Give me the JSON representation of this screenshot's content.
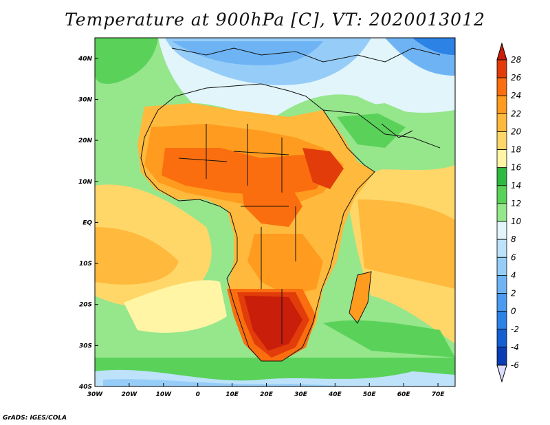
{
  "title": "Temperature at 900hPa [C], VT: 2020013012",
  "footer": "GrADS: IGES/COLA",
  "map": {
    "lon_range": [
      -30,
      75
    ],
    "lat_range": [
      -40,
      45
    ],
    "lon_ticks": [
      {
        "value": -30,
        "label": "30W"
      },
      {
        "value": -20,
        "label": "20W"
      },
      {
        "value": -10,
        "label": "10W"
      },
      {
        "value": 0,
        "label": "0"
      },
      {
        "value": 10,
        "label": "10E"
      },
      {
        "value": 20,
        "label": "20E"
      },
      {
        "value": 30,
        "label": "30E"
      },
      {
        "value": 40,
        "label": "40E"
      },
      {
        "value": 50,
        "label": "50E"
      },
      {
        "value": 60,
        "label": "60E"
      },
      {
        "value": 70,
        "label": "70E"
      }
    ],
    "lat_ticks": [
      {
        "value": 40,
        "label": "40N"
      },
      {
        "value": 30,
        "label": "30N"
      },
      {
        "value": 20,
        "label": "20N"
      },
      {
        "value": 10,
        "label": "10N"
      },
      {
        "value": 0,
        "label": "EQ"
      },
      {
        "value": -10,
        "label": "10S"
      },
      {
        "value": -20,
        "label": "20S"
      },
      {
        "value": -30,
        "label": "30S"
      },
      {
        "value": -40,
        "label": "40S"
      }
    ]
  },
  "colorbar": {
    "bins": [
      {
        "label": "-6",
        "color": "#0a2280"
      },
      {
        "label": "-4",
        "color": "#0a3cb4"
      },
      {
        "label": "-2",
        "color": "#1460d2"
      },
      {
        "label": "0",
        "color": "#2d82e6"
      },
      {
        "label": "2",
        "color": "#4b9bf0"
      },
      {
        "label": "4",
        "color": "#6eb4f5"
      },
      {
        "label": "6",
        "color": "#96cdf8"
      },
      {
        "label": "8",
        "color": "#bde2fa"
      },
      {
        "label": "10",
        "color": "#e1f5fa"
      },
      {
        "label": "12",
        "color": "#96e68c"
      },
      {
        "label": "14",
        "color": "#5ad25a"
      },
      {
        "label": "16",
        "color": "#2fb942"
      },
      {
        "label": "18",
        "color": "#fff5a5"
      },
      {
        "label": "20",
        "color": "#ffd769"
      },
      {
        "label": "22",
        "color": "#ffb93c"
      },
      {
        "label": "24",
        "color": "#ff9b1e"
      },
      {
        "label": "26",
        "color": "#fa6e0f"
      },
      {
        "label": "28",
        "color": "#e13c0a"
      }
    ],
    "over_color": "#c81e0a",
    "under_color": "#dcdcff"
  }
}
